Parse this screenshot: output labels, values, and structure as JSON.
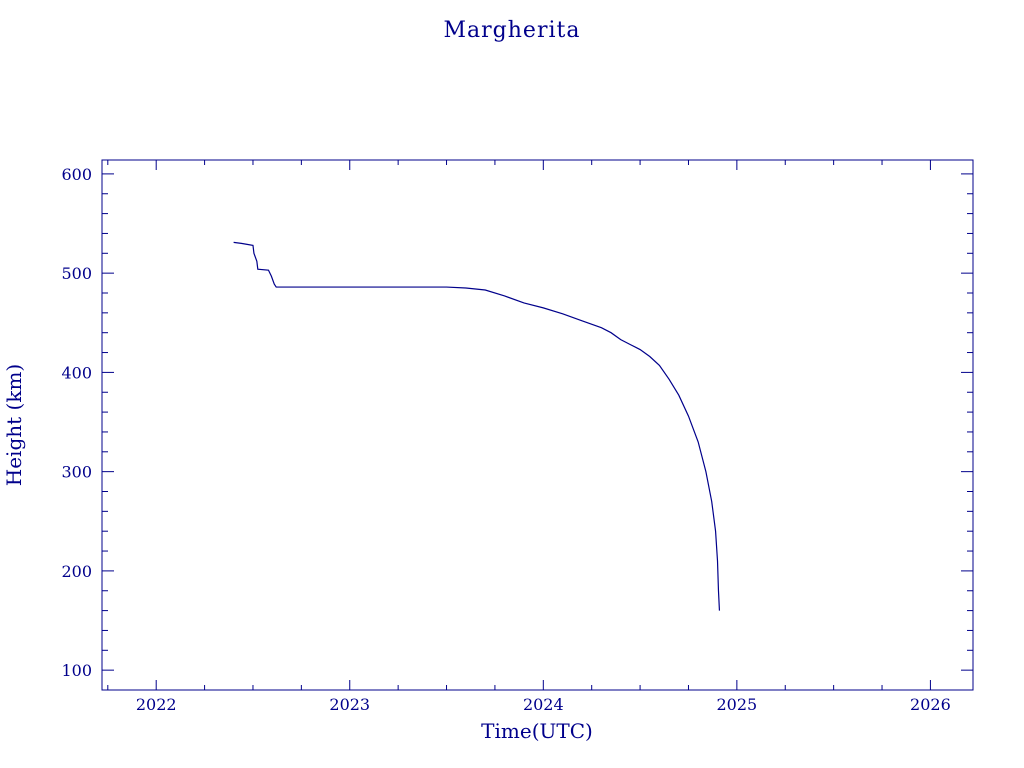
{
  "chart_data": {
    "type": "line",
    "title": "Margherita",
    "xlabel": "Time(UTC)",
    "ylabel": "Height (km)",
    "xlim": [
      2021.72,
      2026.22
    ],
    "ylim": [
      80,
      614
    ],
    "xticks": [
      2022,
      2023,
      2024,
      2025,
      2026
    ],
    "yticks": [
      100,
      200,
      300,
      400,
      500,
      600
    ],
    "grid": false,
    "color": "#00008b",
    "series": [
      {
        "x": [
          2022.4,
          2022.44,
          2022.47,
          2022.5,
          2022.505,
          2022.52,
          2022.525,
          2022.58,
          2022.595,
          2022.61,
          2022.62,
          2022.7,
          2022.8,
          2022.9,
          2023.0,
          2023.1,
          2023.2,
          2023.3,
          2023.4,
          2023.5,
          2023.6,
          2023.7,
          2023.8,
          2023.9,
          2024.0,
          2024.1,
          2024.2,
          2024.3,
          2024.35,
          2024.4,
          2024.45,
          2024.5,
          2024.55,
          2024.6,
          2024.65,
          2024.7,
          2024.75,
          2024.8,
          2024.84,
          2024.87,
          2024.89,
          2024.9,
          2024.905,
          2024.91
        ],
        "y": [
          531,
          530,
          529,
          528,
          520,
          512,
          504,
          503,
          497,
          489,
          486,
          486,
          486,
          486,
          486,
          486,
          486,
          486,
          486,
          486,
          485,
          483,
          477,
          470,
          465,
          459,
          452,
          445,
          440,
          433,
          428,
          423,
          416,
          407,
          393,
          377,
          356,
          330,
          300,
          270,
          240,
          210,
          180,
          160
        ]
      }
    ]
  }
}
